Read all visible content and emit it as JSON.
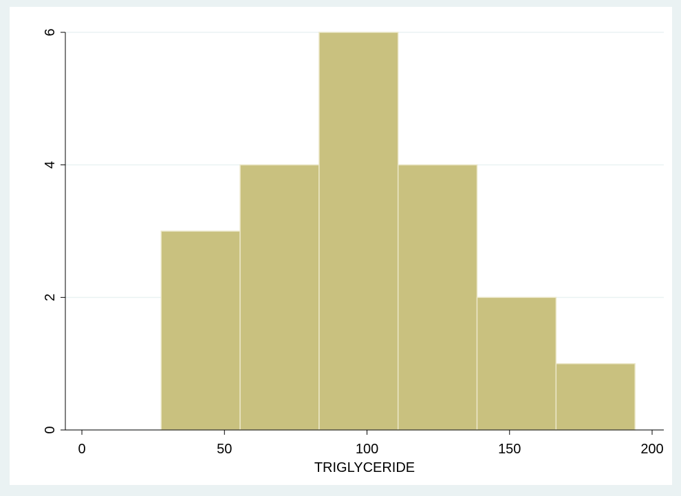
{
  "chart_data": {
    "type": "histogram",
    "x_label": "TRIGLYCERIDE",
    "bins": [
      27.8,
      55.5,
      83.2,
      110.9,
      138.6,
      166.3,
      194.0
    ],
    "values": [
      3,
      4,
      6,
      4,
      2,
      1
    ],
    "color": "#c9c17f",
    "xlim": [
      -5.8,
      204.1
    ],
    "xticks": [
      0,
      50,
      100,
      150,
      200
    ],
    "ylim": [
      0,
      6
    ],
    "yticks": [
      0,
      2,
      4,
      6
    ],
    "grid": true
  }
}
